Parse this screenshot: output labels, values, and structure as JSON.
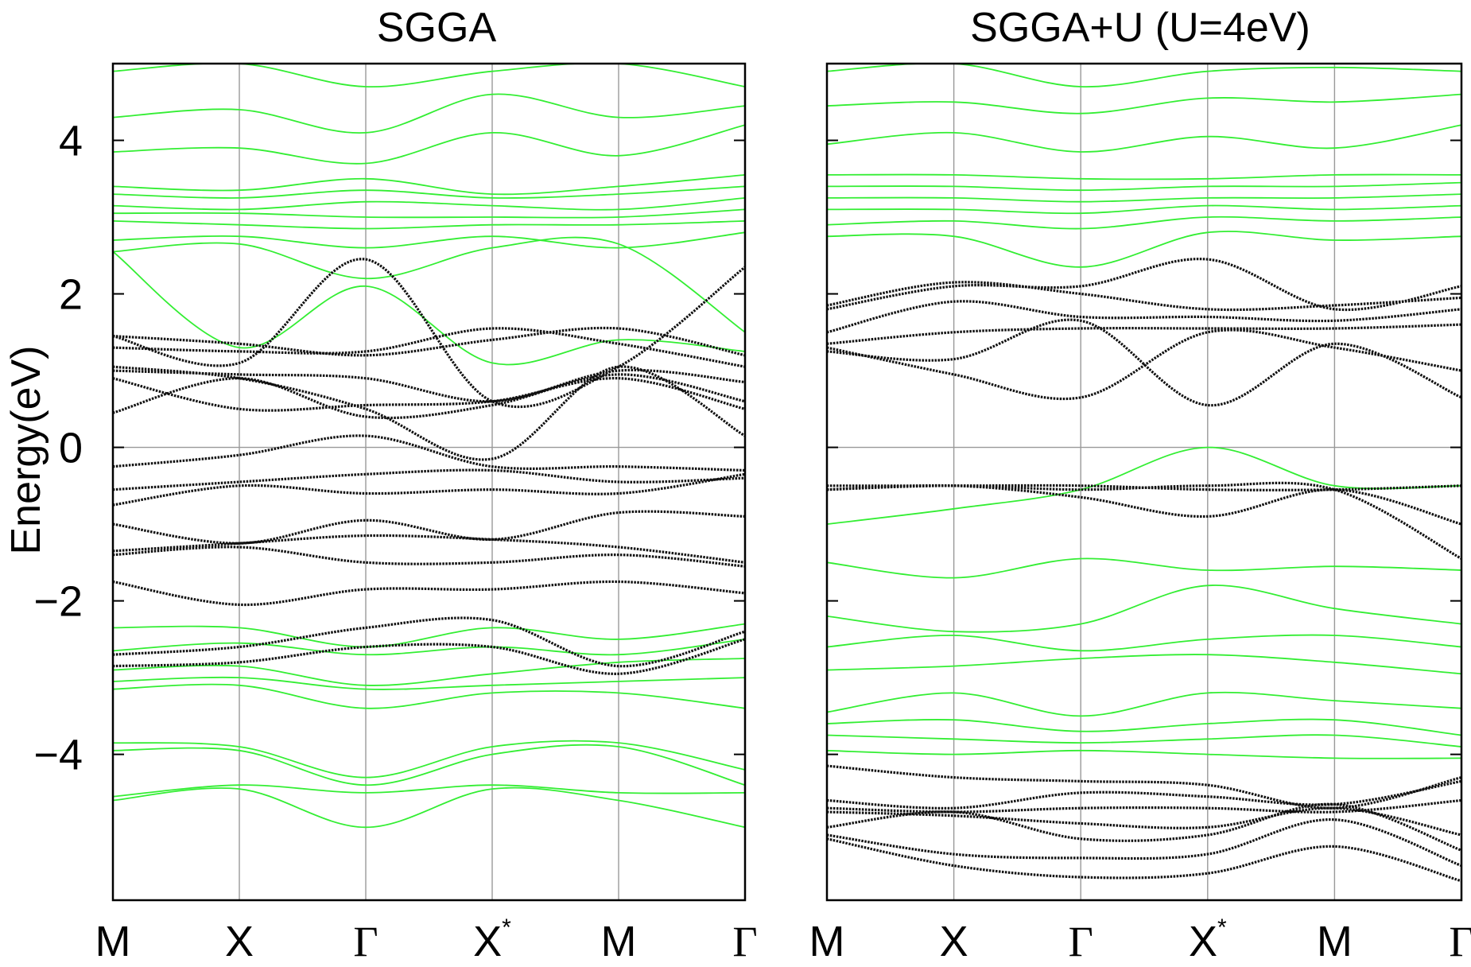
{
  "colors": {
    "green_bands": "#33ee33",
    "black_bands": "#111111",
    "gridline": "#999999",
    "frame": "#000000"
  },
  "chart_data": [
    {
      "type": "line",
      "title": "SGGA",
      "ylabel": "Energy(eV)",
      "xlabel": "",
      "x_tick_labels": [
        "M",
        "X",
        "Γ",
        "X*",
        "M",
        "Γ"
      ],
      "y_ticks": [
        -4,
        -2,
        0,
        2,
        4
      ],
      "y_tick_labels": [
        "−4",
        "−2",
        "0",
        "2",
        "4"
      ],
      "ylim": [
        -5.9,
        5.0
      ],
      "x": [
        0,
        1,
        2,
        3,
        4,
        5
      ],
      "grid": "vertical lines at high-symmetry points; horizontal line at 0",
      "series": [
        {
          "style": "black",
          "values": [
            1.45,
            1.35,
            1.2,
            1.4,
            1.55,
            1.2
          ]
        },
        {
          "style": "black",
          "values": [
            1.3,
            1.25,
            1.25,
            1.55,
            1.35,
            1.05
          ]
        },
        {
          "style": "black",
          "values": [
            1.0,
            0.95,
            0.9,
            0.6,
            1.0,
            0.85
          ]
        },
        {
          "style": "black",
          "values": [
            0.9,
            0.5,
            0.55,
            0.6,
            0.9,
            0.5
          ]
        },
        {
          "style": "black",
          "values": [
            0.45,
            0.9,
            0.4,
            0.55,
            0.95,
            0.6
          ]
        },
        {
          "style": "black",
          "values": [
            -0.25,
            -0.1,
            0.15,
            -0.25,
            -0.25,
            -0.3
          ]
        },
        {
          "style": "black",
          "values": [
            -0.55,
            -0.45,
            -0.35,
            -0.3,
            -0.45,
            -0.4
          ]
        },
        {
          "style": "black",
          "values": [
            -0.75,
            -0.5,
            -0.6,
            -0.55,
            -0.6,
            -0.35
          ]
        },
        {
          "style": "black",
          "values": [
            -1.0,
            -1.25,
            -0.95,
            -1.2,
            -0.85,
            -0.9
          ]
        },
        {
          "style": "black",
          "values": [
            -1.35,
            -1.25,
            -1.15,
            -1.2,
            -1.3,
            -1.5
          ]
        },
        {
          "style": "black",
          "values": [
            -1.4,
            -1.3,
            -1.5,
            -1.5,
            -1.4,
            -1.55
          ]
        },
        {
          "style": "black",
          "values": [
            -1.75,
            -2.05,
            -1.85,
            -1.85,
            -1.75,
            -1.9
          ]
        },
        {
          "style": "black",
          "values": [
            -2.7,
            -2.6,
            -2.35,
            -2.25,
            -2.85,
            -2.4
          ]
        },
        {
          "style": "black",
          "values": [
            -2.85,
            -2.8,
            -2.6,
            -2.6,
            -2.95,
            -2.5
          ]
        },
        {
          "style": "black",
          "values": [
            1.45,
            1.1,
            2.45,
            0.6,
            1.05,
            2.35
          ]
        },
        {
          "style": "black",
          "values": [
            1.05,
            0.9,
            0.5,
            -0.15,
            1.05,
            0.15
          ]
        },
        {
          "style": "green",
          "values": [
            4.9,
            5.0,
            4.7,
            4.9,
            5.0,
            4.7
          ]
        },
        {
          "style": "green",
          "values": [
            4.3,
            4.4,
            4.1,
            4.6,
            4.3,
            4.45
          ]
        },
        {
          "style": "green",
          "values": [
            3.85,
            3.9,
            3.7,
            4.1,
            3.8,
            4.2
          ]
        },
        {
          "style": "green",
          "values": [
            3.4,
            3.35,
            3.5,
            3.3,
            3.4,
            3.55
          ]
        },
        {
          "style": "green",
          "values": [
            3.3,
            3.25,
            3.35,
            3.25,
            3.3,
            3.4
          ]
        },
        {
          "style": "green",
          "values": [
            3.15,
            3.1,
            3.2,
            3.15,
            3.1,
            3.25
          ]
        },
        {
          "style": "green",
          "values": [
            3.05,
            3.05,
            3.0,
            3.0,
            3.0,
            3.1
          ]
        },
        {
          "style": "green",
          "values": [
            2.95,
            2.9,
            2.85,
            2.9,
            2.9,
            2.95
          ]
        },
        {
          "style": "green",
          "values": [
            2.7,
            2.75,
            2.6,
            2.75,
            2.6,
            2.8
          ]
        },
        {
          "style": "green",
          "values": [
            2.55,
            2.65,
            2.2,
            2.6,
            2.65,
            1.5
          ]
        },
        {
          "style": "green",
          "values": [
            2.55,
            1.3,
            2.1,
            1.1,
            1.4,
            1.25
          ]
        },
        {
          "style": "green",
          "values": [
            -2.35,
            -2.35,
            -2.6,
            -2.35,
            -2.5,
            -2.3
          ]
        },
        {
          "style": "green",
          "values": [
            -2.65,
            -2.55,
            -2.7,
            -2.6,
            -2.7,
            -2.5
          ]
        },
        {
          "style": "green",
          "values": [
            -2.9,
            -2.85,
            -3.1,
            -2.95,
            -2.8,
            -2.75
          ]
        },
        {
          "style": "green",
          "values": [
            -3.05,
            -3.0,
            -3.15,
            -3.1,
            -3.05,
            -3.0
          ]
        },
        {
          "style": "green",
          "values": [
            -3.15,
            -3.1,
            -3.4,
            -3.2,
            -3.2,
            -3.4
          ]
        },
        {
          "style": "green",
          "values": [
            -3.85,
            -3.9,
            -4.3,
            -3.9,
            -3.85,
            -4.2
          ]
        },
        {
          "style": "green",
          "values": [
            -3.95,
            -3.95,
            -4.4,
            -4.0,
            -3.9,
            -4.4
          ]
        },
        {
          "style": "green",
          "values": [
            -4.55,
            -4.4,
            -4.5,
            -4.4,
            -4.5,
            -4.5
          ]
        },
        {
          "style": "green",
          "values": [
            -4.6,
            -4.45,
            -4.95,
            -4.45,
            -4.6,
            -4.95
          ]
        }
      ]
    },
    {
      "type": "line",
      "title": "SGGA+U (U=4eV)",
      "ylabel": "",
      "xlabel": "",
      "x_tick_labels": [
        "M",
        "X",
        "Γ",
        "X*",
        "M",
        "Γ"
      ],
      "y_ticks": [
        -4,
        -2,
        0,
        2,
        4
      ],
      "ylim": [
        -5.9,
        5.0
      ],
      "x": [
        0,
        1,
        2,
        3,
        4,
        5
      ],
      "grid": "vertical lines at high-symmetry points; horizontal line at 0",
      "series": [
        {
          "style": "black",
          "values": [
            1.85,
            2.15,
            2.0,
            1.8,
            1.85,
            1.95
          ]
        },
        {
          "style": "black",
          "values": [
            1.8,
            2.1,
            2.1,
            2.45,
            1.8,
            2.1
          ]
        },
        {
          "style": "black",
          "values": [
            1.5,
            1.9,
            1.7,
            1.7,
            1.65,
            1.8
          ]
        },
        {
          "style": "black",
          "values": [
            1.35,
            1.5,
            1.55,
            1.55,
            1.55,
            1.6
          ]
        },
        {
          "style": "black",
          "values": [
            1.25,
            1.15,
            1.65,
            0.55,
            1.35,
            0.65
          ]
        },
        {
          "style": "black",
          "values": [
            1.3,
            0.95,
            0.65,
            1.5,
            1.3,
            1.0
          ]
        },
        {
          "style": "black",
          "values": [
            -0.5,
            -0.5,
            -0.5,
            -0.55,
            -0.55,
            -0.5
          ]
        },
        {
          "style": "black",
          "values": [
            -0.55,
            -0.5,
            -0.65,
            -0.9,
            -0.55,
            -1.0
          ]
        },
        {
          "style": "black",
          "values": [
            -0.55,
            -0.5,
            -0.55,
            -0.5,
            -0.55,
            -1.45
          ]
        },
        {
          "style": "black",
          "values": [
            -4.15,
            -4.3,
            -4.35,
            -4.4,
            -4.7,
            -4.3
          ]
        },
        {
          "style": "black",
          "values": [
            -4.6,
            -4.7,
            -4.5,
            -4.55,
            -4.65,
            -4.35
          ]
        },
        {
          "style": "black",
          "values": [
            -4.7,
            -4.75,
            -4.7,
            -4.7,
            -4.75,
            -4.6
          ]
        },
        {
          "style": "black",
          "values": [
            -4.75,
            -4.8,
            -4.9,
            -4.95,
            -4.7,
            -5.05
          ]
        },
        {
          "style": "black",
          "values": [
            -4.95,
            -4.75,
            -5.1,
            -5.05,
            -4.65,
            -5.25
          ]
        },
        {
          "style": "black",
          "values": [
            -5.05,
            -5.3,
            -5.35,
            -5.3,
            -4.85,
            -5.45
          ]
        },
        {
          "style": "black",
          "values": [
            -5.1,
            -5.45,
            -5.6,
            -5.55,
            -5.2,
            -5.65
          ]
        },
        {
          "style": "green",
          "values": [
            4.9,
            5.0,
            4.7,
            4.9,
            4.95,
            4.9
          ]
        },
        {
          "style": "green",
          "values": [
            4.45,
            4.5,
            4.35,
            4.55,
            4.5,
            4.6
          ]
        },
        {
          "style": "green",
          "values": [
            3.95,
            4.1,
            3.85,
            4.05,
            3.9,
            4.2
          ]
        },
        {
          "style": "green",
          "values": [
            3.55,
            3.55,
            3.5,
            3.5,
            3.55,
            3.55
          ]
        },
        {
          "style": "green",
          "values": [
            3.4,
            3.4,
            3.35,
            3.4,
            3.4,
            3.45
          ]
        },
        {
          "style": "green",
          "values": [
            3.25,
            3.25,
            3.2,
            3.25,
            3.25,
            3.3
          ]
        },
        {
          "style": "green",
          "values": [
            3.1,
            3.1,
            3.05,
            3.15,
            3.1,
            3.15
          ]
        },
        {
          "style": "green",
          "values": [
            2.9,
            2.95,
            2.85,
            3.0,
            2.95,
            3.0
          ]
        },
        {
          "style": "green",
          "values": [
            2.75,
            2.75,
            2.35,
            2.8,
            2.7,
            2.75
          ]
        },
        {
          "style": "green",
          "values": [
            -1.0,
            -0.8,
            -0.55,
            0.0,
            -0.5,
            -0.5
          ]
        },
        {
          "style": "green",
          "values": [
            -1.5,
            -1.7,
            -1.45,
            -1.6,
            -1.55,
            -1.6
          ]
        },
        {
          "style": "green",
          "values": [
            -2.2,
            -2.4,
            -2.3,
            -1.8,
            -2.1,
            -2.3
          ]
        },
        {
          "style": "green",
          "values": [
            -2.6,
            -2.45,
            -2.65,
            -2.5,
            -2.45,
            -2.6
          ]
        },
        {
          "style": "green",
          "values": [
            -2.9,
            -2.85,
            -2.75,
            -2.7,
            -2.8,
            -2.95
          ]
        },
        {
          "style": "green",
          "values": [
            -3.45,
            -3.2,
            -3.5,
            -3.2,
            -3.3,
            -3.4
          ]
        },
        {
          "style": "green",
          "values": [
            -3.6,
            -3.55,
            -3.7,
            -3.6,
            -3.55,
            -3.75
          ]
        },
        {
          "style": "green",
          "values": [
            -3.75,
            -3.8,
            -3.85,
            -3.8,
            -3.75,
            -3.9
          ]
        },
        {
          "style": "green",
          "values": [
            -3.95,
            -4.0,
            -3.95,
            -4.0,
            -4.05,
            -4.05
          ]
        }
      ]
    }
  ]
}
